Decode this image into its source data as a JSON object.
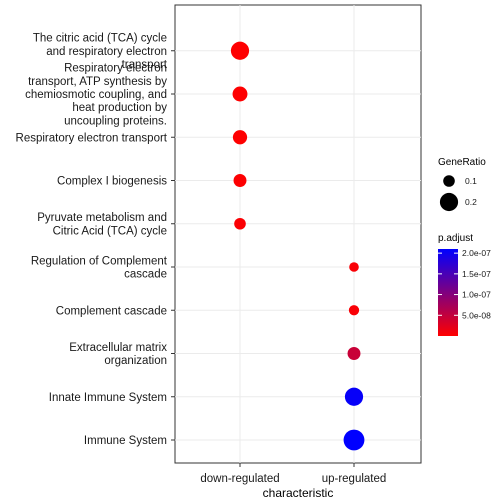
{
  "chart_data": {
    "type": "scatter",
    "xlabel": "characteristic",
    "categories": [
      "down-regulated",
      "up-regulated"
    ],
    "terms": [
      "Immune System",
      "Innate Immune System",
      "Extracellular matrix\norganization",
      "Complement cascade",
      "Regulation of Complement\ncascade",
      "Pyruvate metabolism and\nCitric Acid (TCA) cycle",
      "Complex I biogenesis",
      "Respiratory electron transport",
      "Respiratory electron\ntransport, ATP synthesis by\nchemiosmotic coupling, and\nheat production by\nuncoupling proteins.",
      "The citric acid (TCA) cycle\nand respiratory electron\ntransport"
    ],
    "points": [
      {
        "term": "The citric acid (TCA) cycle\nand respiratory electron\ntransport",
        "category": "down-regulated",
        "gene_ratio": 0.2,
        "p_adjust": 1e-09
      },
      {
        "term": "Respiratory electron\ntransport, ATP synthesis by\nchemiosmotic coupling, and\nheat production by\nuncoupling proteins.",
        "category": "down-regulated",
        "gene_ratio": 0.15,
        "p_adjust": 1e-09
      },
      {
        "term": "Respiratory electron transport",
        "category": "down-regulated",
        "gene_ratio": 0.14,
        "p_adjust": 1e-09
      },
      {
        "term": "Complex I biogenesis",
        "category": "down-regulated",
        "gene_ratio": 0.12,
        "p_adjust": 2e-09
      },
      {
        "term": "Pyruvate metabolism and\nCitric Acid (TCA) cycle",
        "category": "down-regulated",
        "gene_ratio": 0.1,
        "p_adjust": 3e-09
      },
      {
        "term": "Regulation of Complement\ncascade",
        "category": "up-regulated",
        "gene_ratio": 0.07,
        "p_adjust": 5e-09
      },
      {
        "term": "Complement cascade",
        "category": "up-regulated",
        "gene_ratio": 0.08,
        "p_adjust": 5e-09
      },
      {
        "term": "Extracellular matrix\norganization",
        "category": "up-regulated",
        "gene_ratio": 0.12,
        "p_adjust": 4.5e-08
      },
      {
        "term": "Innate Immune System",
        "category": "up-regulated",
        "gene_ratio": 0.2,
        "p_adjust": 2.05e-07
      },
      {
        "term": "Immune System",
        "category": "up-regulated",
        "gene_ratio": 0.24,
        "p_adjust": 2.1e-07
      }
    ],
    "size_legend": {
      "title": "GeneRatio",
      "values": [
        0.1,
        0.2
      ],
      "labels": [
        "0.1",
        "0.2"
      ]
    },
    "color_legend": {
      "title": "p.adjust",
      "range": [
        0,
        2.1e-07
      ],
      "ticks": [
        2e-07,
        1.5e-07,
        1e-07,
        5e-08
      ],
      "tick_labels": [
        "2.0e-07",
        "1.5e-07",
        "1.0e-07",
        "5.0e-08"
      ],
      "low_color": "#ff0000",
      "high_color": "#0000ff"
    },
    "grid": true,
    "legend_position": "right"
  }
}
